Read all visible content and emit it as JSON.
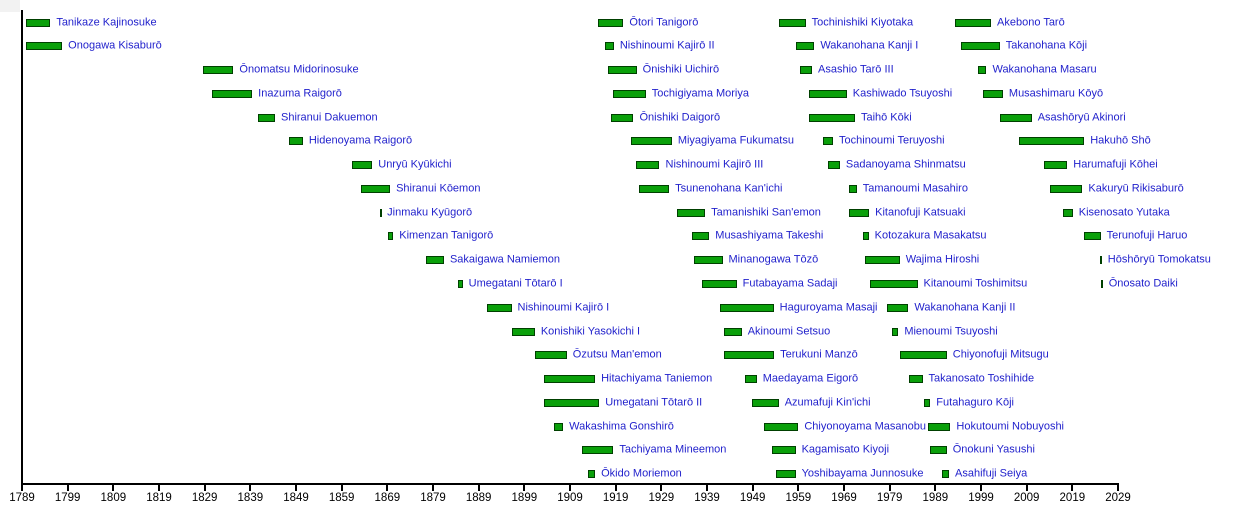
{
  "chart_data": {
    "type": "bar",
    "subtype": "timeline-gantt",
    "title": "",
    "xlabel": "",
    "ylabel": "",
    "xlim": [
      1789,
      2029
    ],
    "x_ticks": [
      1789,
      1799,
      1809,
      1819,
      1829,
      1839,
      1849,
      1859,
      1869,
      1879,
      1889,
      1899,
      1909,
      1919,
      1929,
      1939,
      1949,
      1959,
      1969,
      1979,
      1989,
      1999,
      2009,
      2019,
      2029
    ],
    "grid": false,
    "legend_position": "none",
    "rows_per_wrap": 20,
    "bar_color": "#0AA00A",
    "bar_border_color": "#004000",
    "label_color": "#2222CC",
    "axis_color": "#000000",
    "entries": [
      {
        "name": "Tanikaze Kajinosuke",
        "start": 1789.9,
        "end": 1795.2
      },
      {
        "name": "Onogawa Kisaburō",
        "start": 1789.8,
        "end": 1797.8
      },
      {
        "name": "Ōnomatsu Midorinosuke",
        "start": 1828.6,
        "end": 1835.3
      },
      {
        "name": "Inazuma Raigorō",
        "start": 1830.5,
        "end": 1839.4
      },
      {
        "name": "Shiranui Dakuemon",
        "start": 1840.7,
        "end": 1844.4
      },
      {
        "name": "Hidenoyama Raigorō",
        "start": 1847.5,
        "end": 1850.5
      },
      {
        "name": "Unryū Kyūkichi",
        "start": 1861.3,
        "end": 1865.7
      },
      {
        "name": "Shiranui Kōemon",
        "start": 1863.2,
        "end": 1869.6
      },
      {
        "name": "Jinmaku Kyūgorō",
        "start": 1867.3,
        "end": 1867.6
      },
      {
        "name": "Kimenzan Tanigorō",
        "start": 1869.1,
        "end": 1870.3
      },
      {
        "name": "Sakaigawa Namiemon",
        "start": 1877.4,
        "end": 1881.4
      },
      {
        "name": "Umegatani Tōtarō I",
        "start": 1884.5,
        "end": 1885.5
      },
      {
        "name": "Nishinoumi Kajirō I",
        "start": 1890.8,
        "end": 1896.2
      },
      {
        "name": "Konishiki Yasokichi I",
        "start": 1896.2,
        "end": 1901.3
      },
      {
        "name": "Ōzutsu Man'emon",
        "start": 1901.3,
        "end": 1908.3
      },
      {
        "name": "Hitachiyama Taniemon",
        "start": 1903.4,
        "end": 1914.5
      },
      {
        "name": "Umegatani Tōtarō II",
        "start": 1903.4,
        "end": 1915.4
      },
      {
        "name": "Wakashima Gonshirō",
        "start": 1905.5,
        "end": 1907.5
      },
      {
        "name": "Tachiyama Mineemon",
        "start": 1911.6,
        "end": 1918.5
      },
      {
        "name": "Ōkido Moriemon",
        "start": 1913.0,
        "end": 1914.5
      },
      {
        "name": "Ōtori Tanigorō",
        "start": 1915.2,
        "end": 1920.7
      },
      {
        "name": "Nishinoumi Kajirō II",
        "start": 1916.6,
        "end": 1918.6
      },
      {
        "name": "Ōnishiki Uichirō",
        "start": 1917.4,
        "end": 1923.6
      },
      {
        "name": "Tochigiyama Moriya",
        "start": 1918.5,
        "end": 1925.6
      },
      {
        "name": "Ōnishiki Daigorō",
        "start": 1917.9,
        "end": 1922.9
      },
      {
        "name": "Miyagiyama Fukumatsu",
        "start": 1922.3,
        "end": 1931.3
      },
      {
        "name": "Nishinoumi Kajirō III",
        "start": 1923.4,
        "end": 1928.6
      },
      {
        "name": "Tsunenohana Kan'ichi",
        "start": 1924.2,
        "end": 1930.7
      },
      {
        "name": "Tamanishiki San'emon",
        "start": 1932.5,
        "end": 1938.6
      },
      {
        "name": "Musashiyama Takeshi",
        "start": 1935.8,
        "end": 1939.5
      },
      {
        "name": "Minanogawa Tōzō",
        "start": 1936.2,
        "end": 1942.4
      },
      {
        "name": "Futabayama Sadaji",
        "start": 1937.8,
        "end": 1945.5
      },
      {
        "name": "Haguroyama Masaji",
        "start": 1941.8,
        "end": 1953.6
      },
      {
        "name": "Akinoumi Setsuo",
        "start": 1942.8,
        "end": 1946.6
      },
      {
        "name": "Terukuni Manzō",
        "start": 1942.8,
        "end": 1953.7
      },
      {
        "name": "Maedayama Eigorō",
        "start": 1947.3,
        "end": 1949.9
      },
      {
        "name": "Azumafuji Kin'ichi",
        "start": 1948.8,
        "end": 1954.7
      },
      {
        "name": "Chiyonoyama Masanobu",
        "start": 1951.5,
        "end": 1959.0
      },
      {
        "name": "Kagamisato Kiyoji",
        "start": 1953.3,
        "end": 1958.4
      },
      {
        "name": "Yoshibayama Junnosuke",
        "start": 1954.2,
        "end": 1958.4
      },
      {
        "name": "Tochinishiki Kiyotaka",
        "start": 1954.8,
        "end": 1960.6
      },
      {
        "name": "Wakanohana Kanji I",
        "start": 1958.4,
        "end": 1962.5
      },
      {
        "name": "Asashio Tarō III",
        "start": 1959.3,
        "end": 1962.0
      },
      {
        "name": "Kashiwado Tsuyoshi",
        "start": 1961.4,
        "end": 1969.6
      },
      {
        "name": "Taihō Kōki",
        "start": 1961.4,
        "end": 1971.4
      },
      {
        "name": "Tochinoumi Teruyoshi",
        "start": 1964.5,
        "end": 1966.6
      },
      {
        "name": "Sadanoyama Shinmatsu",
        "start": 1965.4,
        "end": 1968.1
      },
      {
        "name": "Tamanoumi Masahiro",
        "start": 1970.2,
        "end": 1971.8
      },
      {
        "name": "Kitanofuji Katsuaki",
        "start": 1970.1,
        "end": 1974.5
      },
      {
        "name": "Kotozakura Masakatsu",
        "start": 1973.2,
        "end": 1974.4
      },
      {
        "name": "Wajima Hiroshi",
        "start": 1973.5,
        "end": 1981.2
      },
      {
        "name": "Kitanoumi Toshimitsu",
        "start": 1974.6,
        "end": 1985.1
      },
      {
        "name": "Wakanohana Kanji II",
        "start": 1978.5,
        "end": 1983.1
      },
      {
        "name": "Mienoumi Tsuyoshi",
        "start": 1979.6,
        "end": 1980.9
      },
      {
        "name": "Chiyonofuji Mitsugu",
        "start": 1981.2,
        "end": 1991.5
      },
      {
        "name": "Takanosato Toshihide",
        "start": 1983.3,
        "end": 1986.2
      },
      {
        "name": "Futahaguro Kōji",
        "start": 1986.5,
        "end": 1987.9
      },
      {
        "name": "Hokutoumi Nobuyoshi",
        "start": 1987.4,
        "end": 1992.3
      },
      {
        "name": "Ōnokuni Yasushi",
        "start": 1987.8,
        "end": 1991.5
      },
      {
        "name": "Asahifuji Seiya",
        "start": 1990.5,
        "end": 1992.0
      },
      {
        "name": "Akebono Tarō",
        "start": 1993.2,
        "end": 2001.2
      },
      {
        "name": "Takanohana Kōji",
        "start": 1994.6,
        "end": 2003.1
      },
      {
        "name": "Wakanohana Masaru",
        "start": 1998.3,
        "end": 2000.2
      },
      {
        "name": "Musashimaru Kōyō",
        "start": 1999.4,
        "end": 2003.8
      },
      {
        "name": "Asashōryū Akinori",
        "start": 2003.2,
        "end": 2010.1
      },
      {
        "name": "Hakuhō Shō",
        "start": 2007.4,
        "end": 2021.6
      },
      {
        "name": "Harumafuji Kōhei",
        "start": 2012.7,
        "end": 2017.9
      },
      {
        "name": "Kakuryū Rikisaburō",
        "start": 2014.2,
        "end": 2021.2
      },
      {
        "name": "Kisenosato Yutaka",
        "start": 2017.0,
        "end": 2019.1
      },
      {
        "name": "Terunofuji Haruo",
        "start": 2021.5,
        "end": 2025.2
      },
      {
        "name": "Hōshōryū Tomokatsu",
        "start": 2025.1,
        "end": 2025.4
      },
      {
        "name": "Ōnosato Daiki",
        "start": 2025.3,
        "end": 2025.6
      }
    ]
  }
}
